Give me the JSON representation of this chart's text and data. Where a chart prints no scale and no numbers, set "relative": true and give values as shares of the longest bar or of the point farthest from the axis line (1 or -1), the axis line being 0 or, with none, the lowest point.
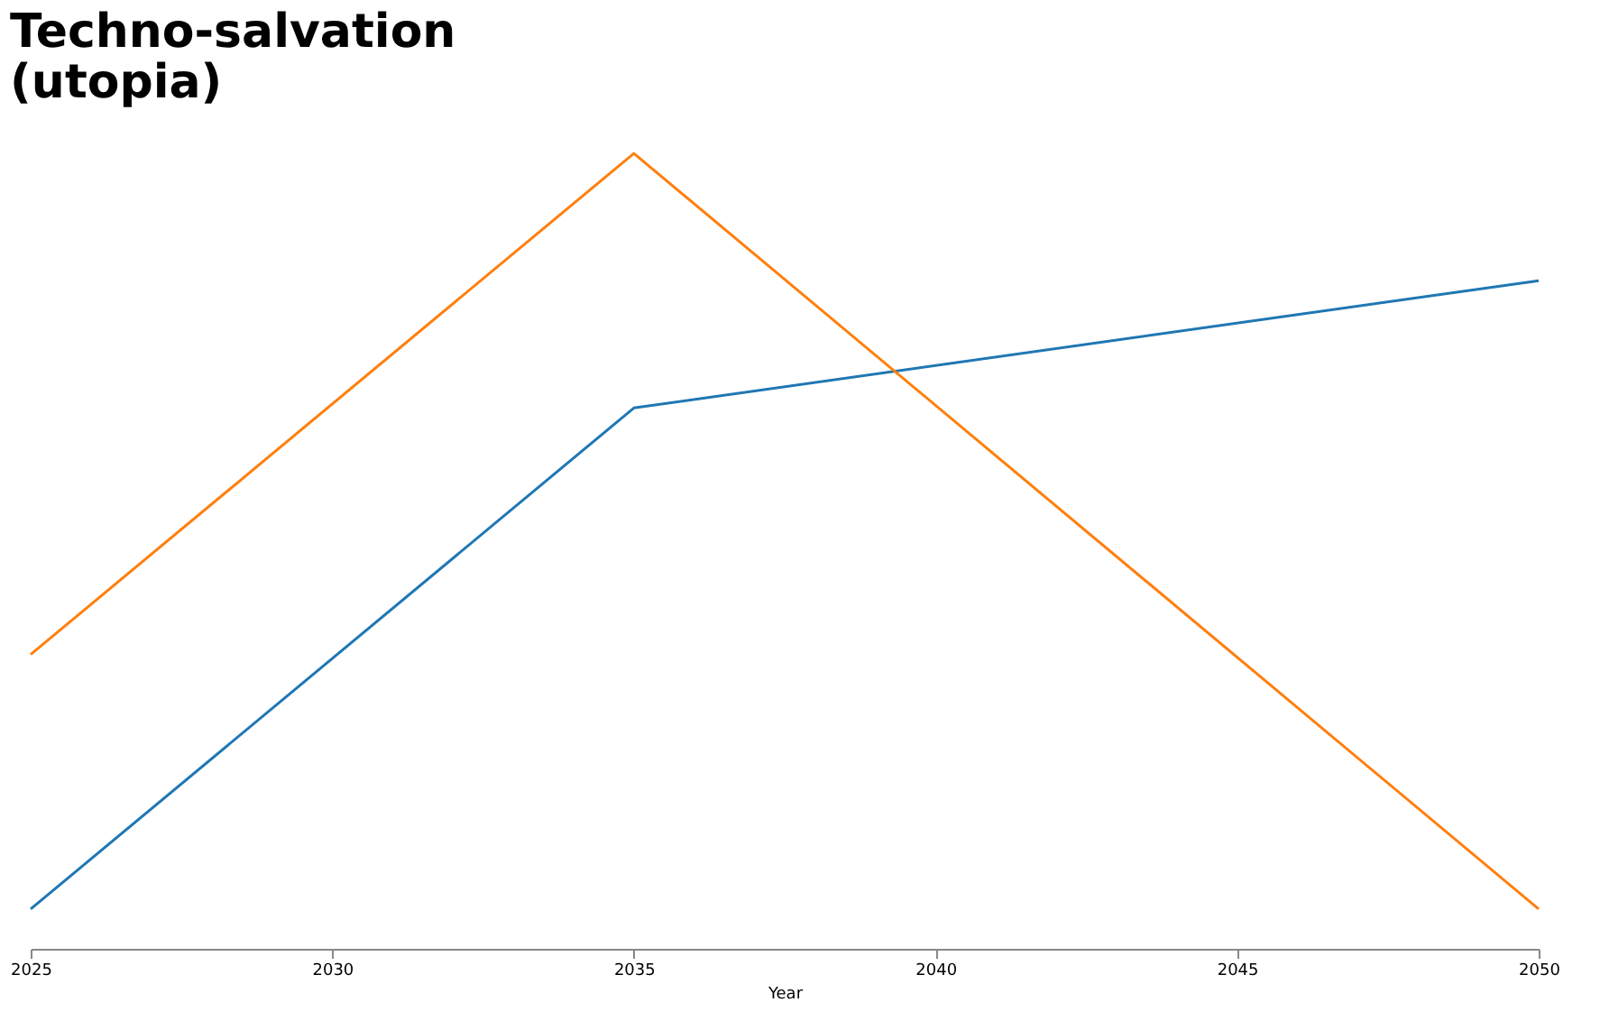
{
  "chart_data": {
    "type": "line",
    "title": "Techno-salvation\n(utopia)",
    "xlabel": "Year",
    "relative": true,
    "x": [
      2025,
      2035,
      2050
    ],
    "xlim": [
      2025,
      2050
    ],
    "xticks": [
      2025,
      2030,
      2035,
      2040,
      2045,
      2050
    ],
    "grid": false,
    "legend": false,
    "series": [
      {
        "color": "#1f77b4",
        "values": [
          0.05,
          0.68,
          0.84
        ]
      },
      {
        "color": "#ff7f0e",
        "values": [
          0.37,
          1,
          0.05
        ]
      }
    ]
  }
}
